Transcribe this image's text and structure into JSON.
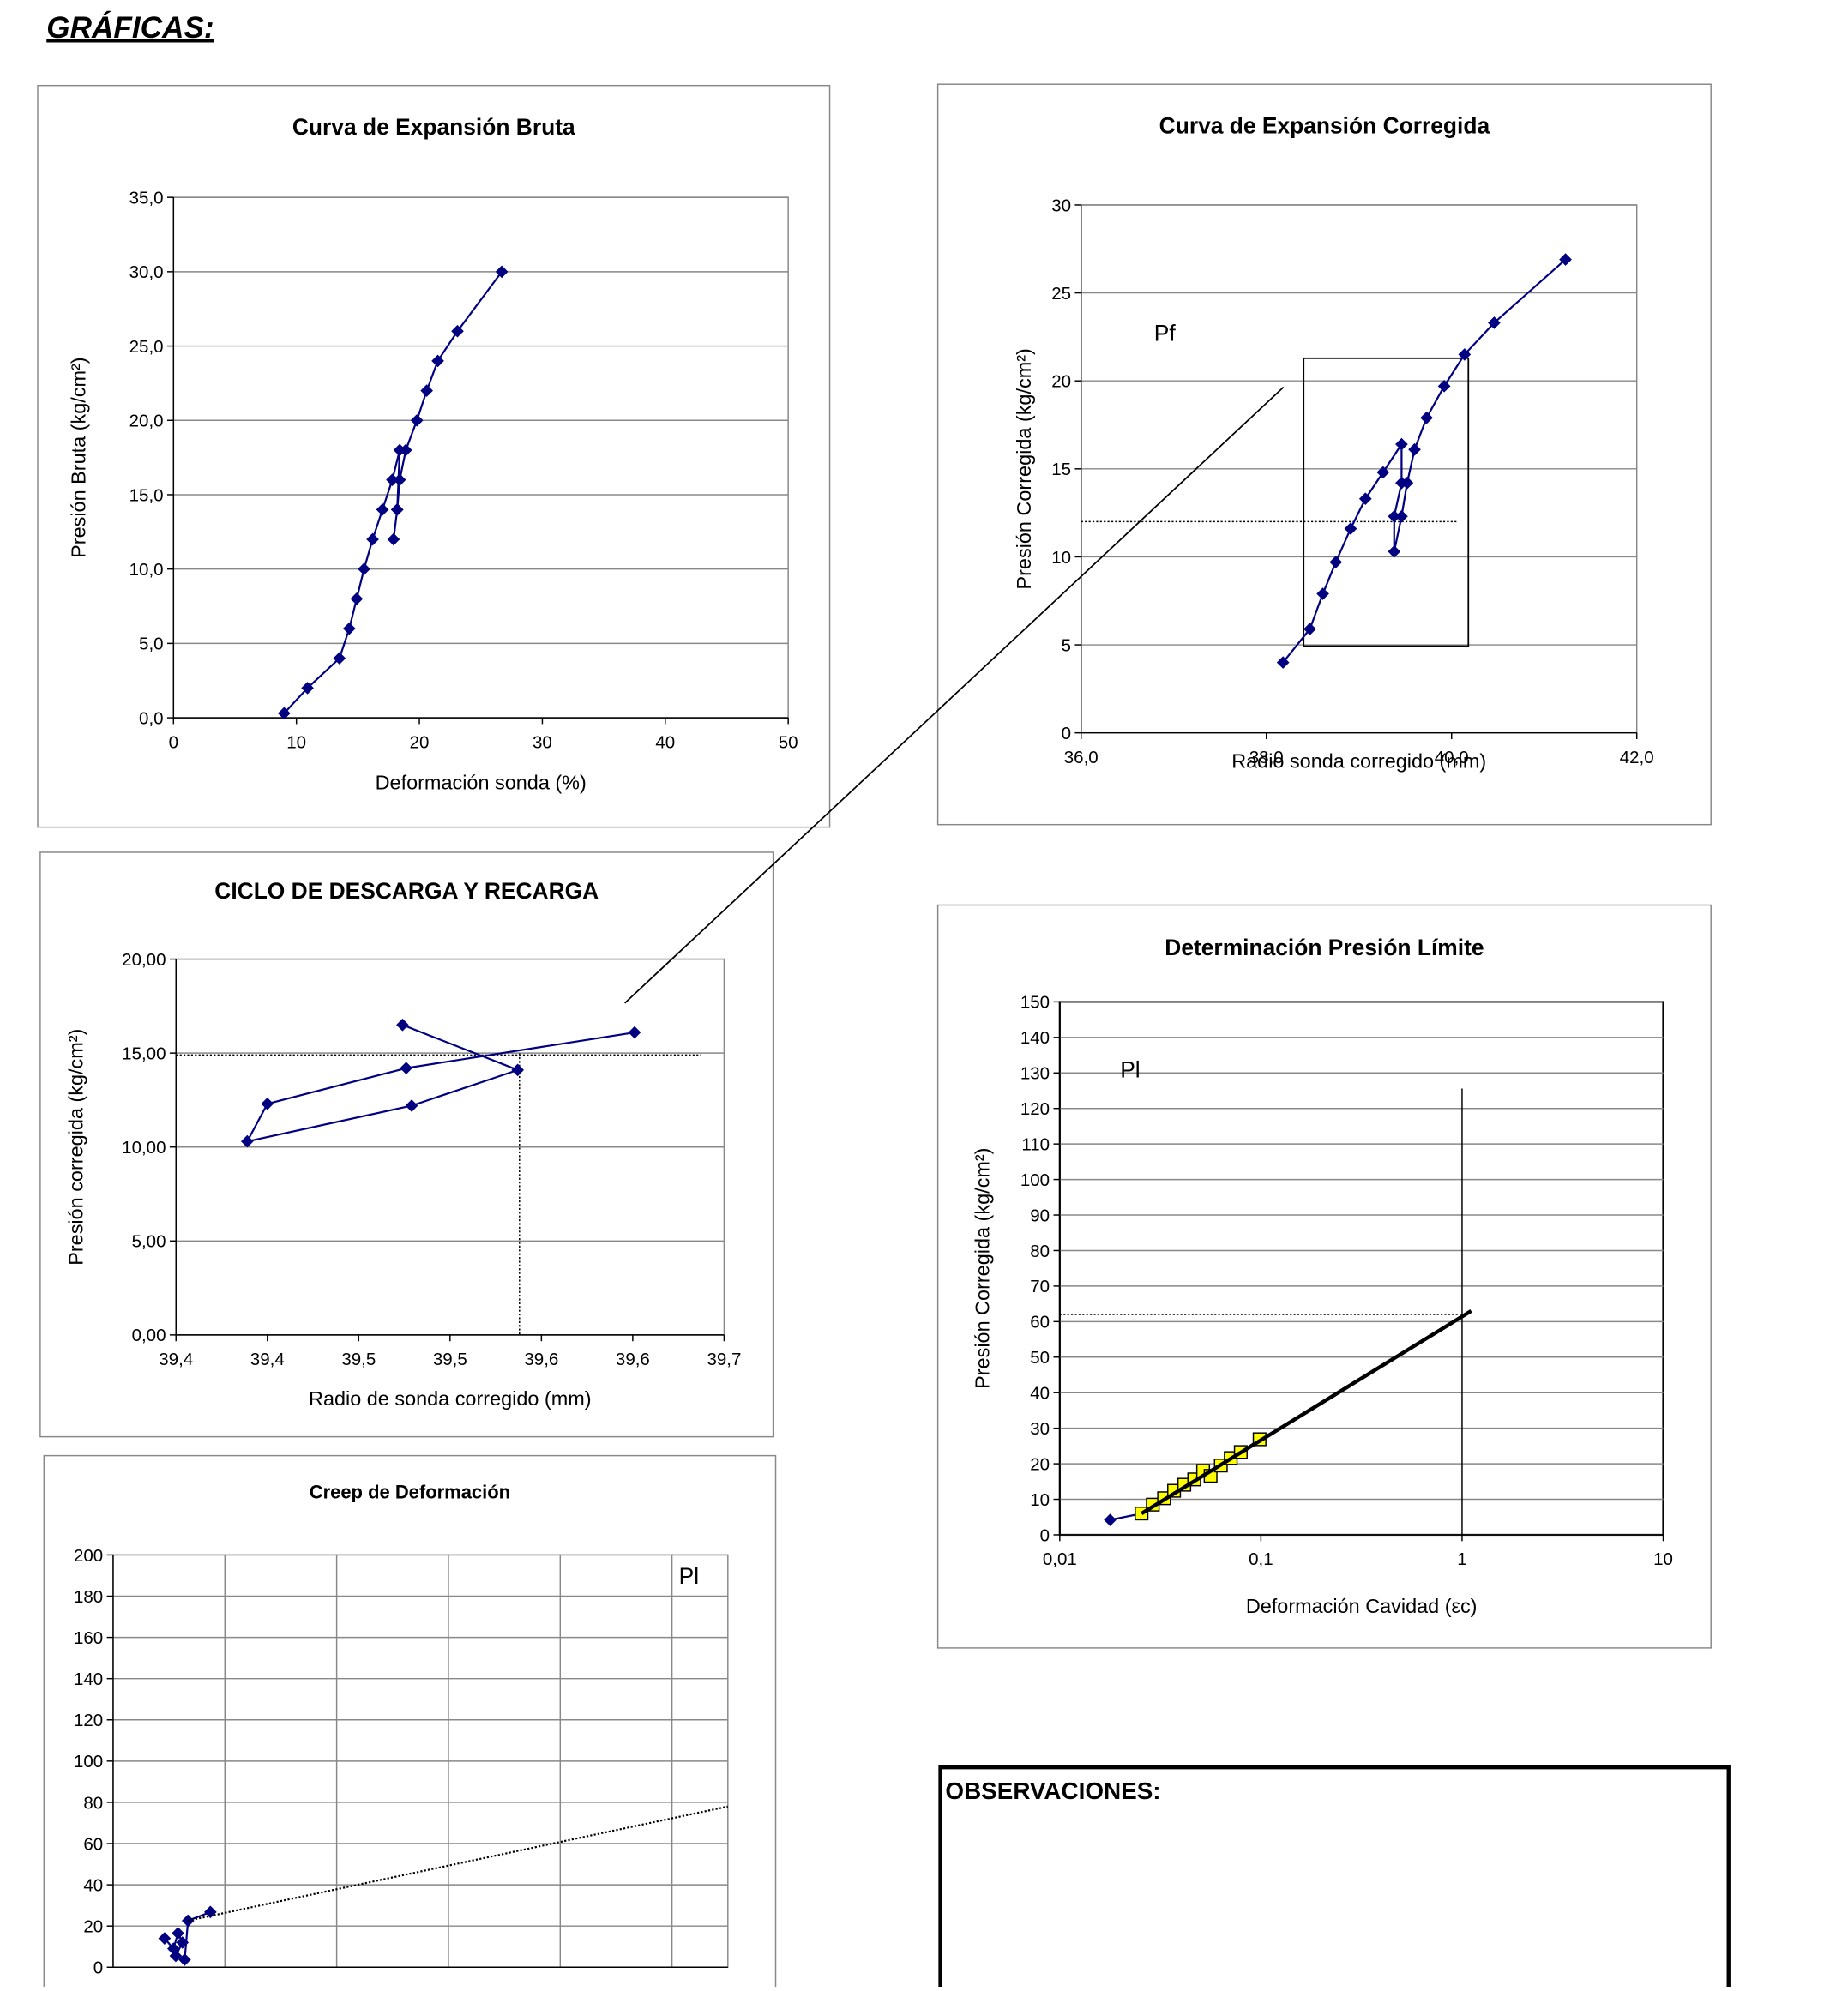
{
  "header": {
    "title": "GRÁFICAS:"
  },
  "chart_data": [
    {
      "type": "line",
      "title": "Curva de Expansión Bruta",
      "x_label": "Deformación sonda (%)",
      "y_label": "Presión Bruta (kg/cm²)",
      "xlim": [
        0,
        50
      ],
      "xticks": [
        0,
        10,
        20,
        30,
        40,
        50
      ],
      "ylim": [
        0,
        35
      ],
      "yticks": [
        {
          "value": 0,
          "label": "0,0"
        },
        {
          "value": 5,
          "label": "5,0"
        },
        {
          "value": 10,
          "label": "10,0"
        },
        {
          "value": 15,
          "label": "15,0"
        },
        {
          "value": 20,
          "label": "20,0"
        },
        {
          "value": 25,
          "label": "25,0"
        },
        {
          "value": 30,
          "label": "30,0"
        },
        {
          "value": 35,
          "label": "35,0"
        }
      ],
      "grid": true,
      "series": [
        {
          "color": "#000080",
          "marker": "diamond",
          "x": [
            9.0,
            10.9,
            13.5,
            14.3,
            14.9,
            15.5,
            16.2,
            17.0,
            17.8,
            18.4,
            18.2,
            17.9,
            18.2,
            18.4,
            18.9,
            19.8,
            20.6,
            21.5,
            23.1,
            26.7
          ],
          "values": [
            0.3,
            2.0,
            4.0,
            6.0,
            8.0,
            10.0,
            12.0,
            14.0,
            16.0,
            18.0,
            14.0,
            12.0,
            14.0,
            16.0,
            18.0,
            20.0,
            22.0,
            24.0,
            26.0,
            30.0
          ]
        }
      ]
    },
    {
      "type": "line",
      "title": "Curva de Expansión Corregida",
      "x_label": "Radio sonda corregido (mm)",
      "y_label": "Presión Corregida (kg/cm²)",
      "annotation": "Pf",
      "xlim": [
        36,
        42
      ],
      "xticks": [
        {
          "value": 36,
          "label": "36,0"
        },
        {
          "value": 38,
          "label": "38,0"
        },
        {
          "value": 40,
          "label": "40,0"
        },
        {
          "value": 42,
          "label": "42,0"
        }
      ],
      "ylim": [
        0,
        30
      ],
      "yticks": [
        0,
        5,
        10,
        15,
        20,
        25,
        30
      ],
      "grid": true,
      "hlines": [
        12
      ],
      "series": [
        {
          "color": "#000080",
          "marker": "diamond",
          "x": [
            38.18,
            38.47,
            38.61,
            38.75,
            38.91,
            39.07,
            39.26,
            39.46,
            39.46,
            39.38,
            39.38,
            39.46,
            39.52,
            39.6,
            39.73,
            39.92,
            40.14,
            40.46,
            41.23
          ],
          "values": [
            4.0,
            5.9,
            7.9,
            9.7,
            11.6,
            13.3,
            14.8,
            16.4,
            14.2,
            12.3,
            10.3,
            12.3,
            14.2,
            16.1,
            17.9,
            19.7,
            21.5,
            23.3,
            26.9
          ]
        }
      ]
    },
    {
      "type": "line",
      "title": "CICLO DE DESCARGA Y RECARGA",
      "x_label": "Radio de sonda corregido (mm)",
      "y_label": "Presión corregida (kg/cm²)",
      "xlim": [
        39.4,
        39.7
      ],
      "xticks": [
        {
          "value": 39.4,
          "label": "39,4"
        },
        {
          "value": 39.45,
          "label": "39,4"
        },
        {
          "value": 39.5,
          "label": "39,5"
        },
        {
          "value": 39.55,
          "label": "39,5"
        },
        {
          "value": 39.6,
          "label": "39,6"
        },
        {
          "value": 39.65,
          "label": "39,6"
        },
        {
          "value": 39.7,
          "label": "39,7"
        }
      ],
      "ylim": [
        0,
        20
      ],
      "yticks": [
        {
          "value": 0,
          "label": "0,00"
        },
        {
          "value": 5,
          "label": "5,00"
        },
        {
          "value": 10,
          "label": "10,00"
        },
        {
          "value": 15,
          "label": "15,00"
        },
        {
          "value": 20,
          "label": "20,00"
        }
      ],
      "grid": true,
      "hlines": [
        14.9
      ],
      "vlines": [
        39.588
      ],
      "series": [
        {
          "color": "#000080",
          "marker": "diamond",
          "x": [
            39.524,
            39.587,
            39.529,
            39.439,
            39.45,
            39.526,
            39.651
          ],
          "values": [
            16.5,
            14.1,
            12.2,
            10.3,
            12.3,
            14.2,
            16.1
          ]
        }
      ]
    },
    {
      "type": "line",
      "title": "Determinación Presión Límite",
      "x_label": "Deformación Cavidad (εc)",
      "y_label": "Presión Corregida (kg/cm²)",
      "annotation": "Pl",
      "log_x": true,
      "xlim": [
        0.01,
        10
      ],
      "xticks": [
        {
          "value": 0.01,
          "label": "0,01"
        },
        {
          "value": 0.1,
          "label": "0,1"
        },
        1,
        10
      ],
      "ylim": [
        0,
        150
      ],
      "yticks": [
        0,
        10,
        20,
        30,
        40,
        50,
        60,
        70,
        80,
        90,
        100,
        110,
        120,
        130,
        140,
        150
      ],
      "grid": true,
      "hlines": [
        62
      ],
      "vlines": [
        1
      ],
      "series": [
        {
          "color": "#000080",
          "marker": "diamond",
          "x": [
            0.0178,
            0.0255
          ],
          "values": [
            4.2,
            6.0
          ]
        },
        {
          "color": "#ffff00",
          "marker": "square",
          "x": [
            0.0255,
            0.029,
            0.033,
            0.037,
            0.0416,
            0.0466,
            0.0516,
            0.0562,
            0.0632,
            0.0708,
            0.0794,
            0.0985
          ],
          "values": [
            6.0,
            8.5,
            10.3,
            12.4,
            14.1,
            15.6,
            18.0,
            16.6,
            19.5,
            21.6,
            23.3,
            26.9
          ]
        },
        {
          "color": "#000000",
          "marker": "none",
          "line_width": 3,
          "x": [
            0.0255,
            1.11
          ],
          "values": [
            6.0,
            63.0
          ]
        }
      ]
    },
    {
      "type": "line",
      "title": "Creep de Deformación",
      "annotation": "Pl",
      "xlim": [
        0,
        5.5
      ],
      "ylim": [
        0,
        200
      ],
      "yticks": [
        0,
        20,
        40,
        60,
        80,
        100,
        120,
        140,
        160,
        180,
        200
      ],
      "grid": true,
      "series": [
        {
          "color": "#000080",
          "marker": "diamond",
          "x": [
            0.46,
            0.54,
            0.58,
            0.62,
            0.56,
            0.64,
            0.67,
            0.87
          ],
          "values": [
            14,
            9,
            16.5,
            12,
            5.5,
            3.7,
            22.6,
            26.8
          ]
        },
        {
          "color": "#000000",
          "marker": "none",
          "line_style": "dotted",
          "x": [
            0.67,
            5.5
          ],
          "values": [
            22.6,
            78
          ]
        }
      ]
    }
  ],
  "observations": {
    "title": "OBSERVACIONES:"
  }
}
